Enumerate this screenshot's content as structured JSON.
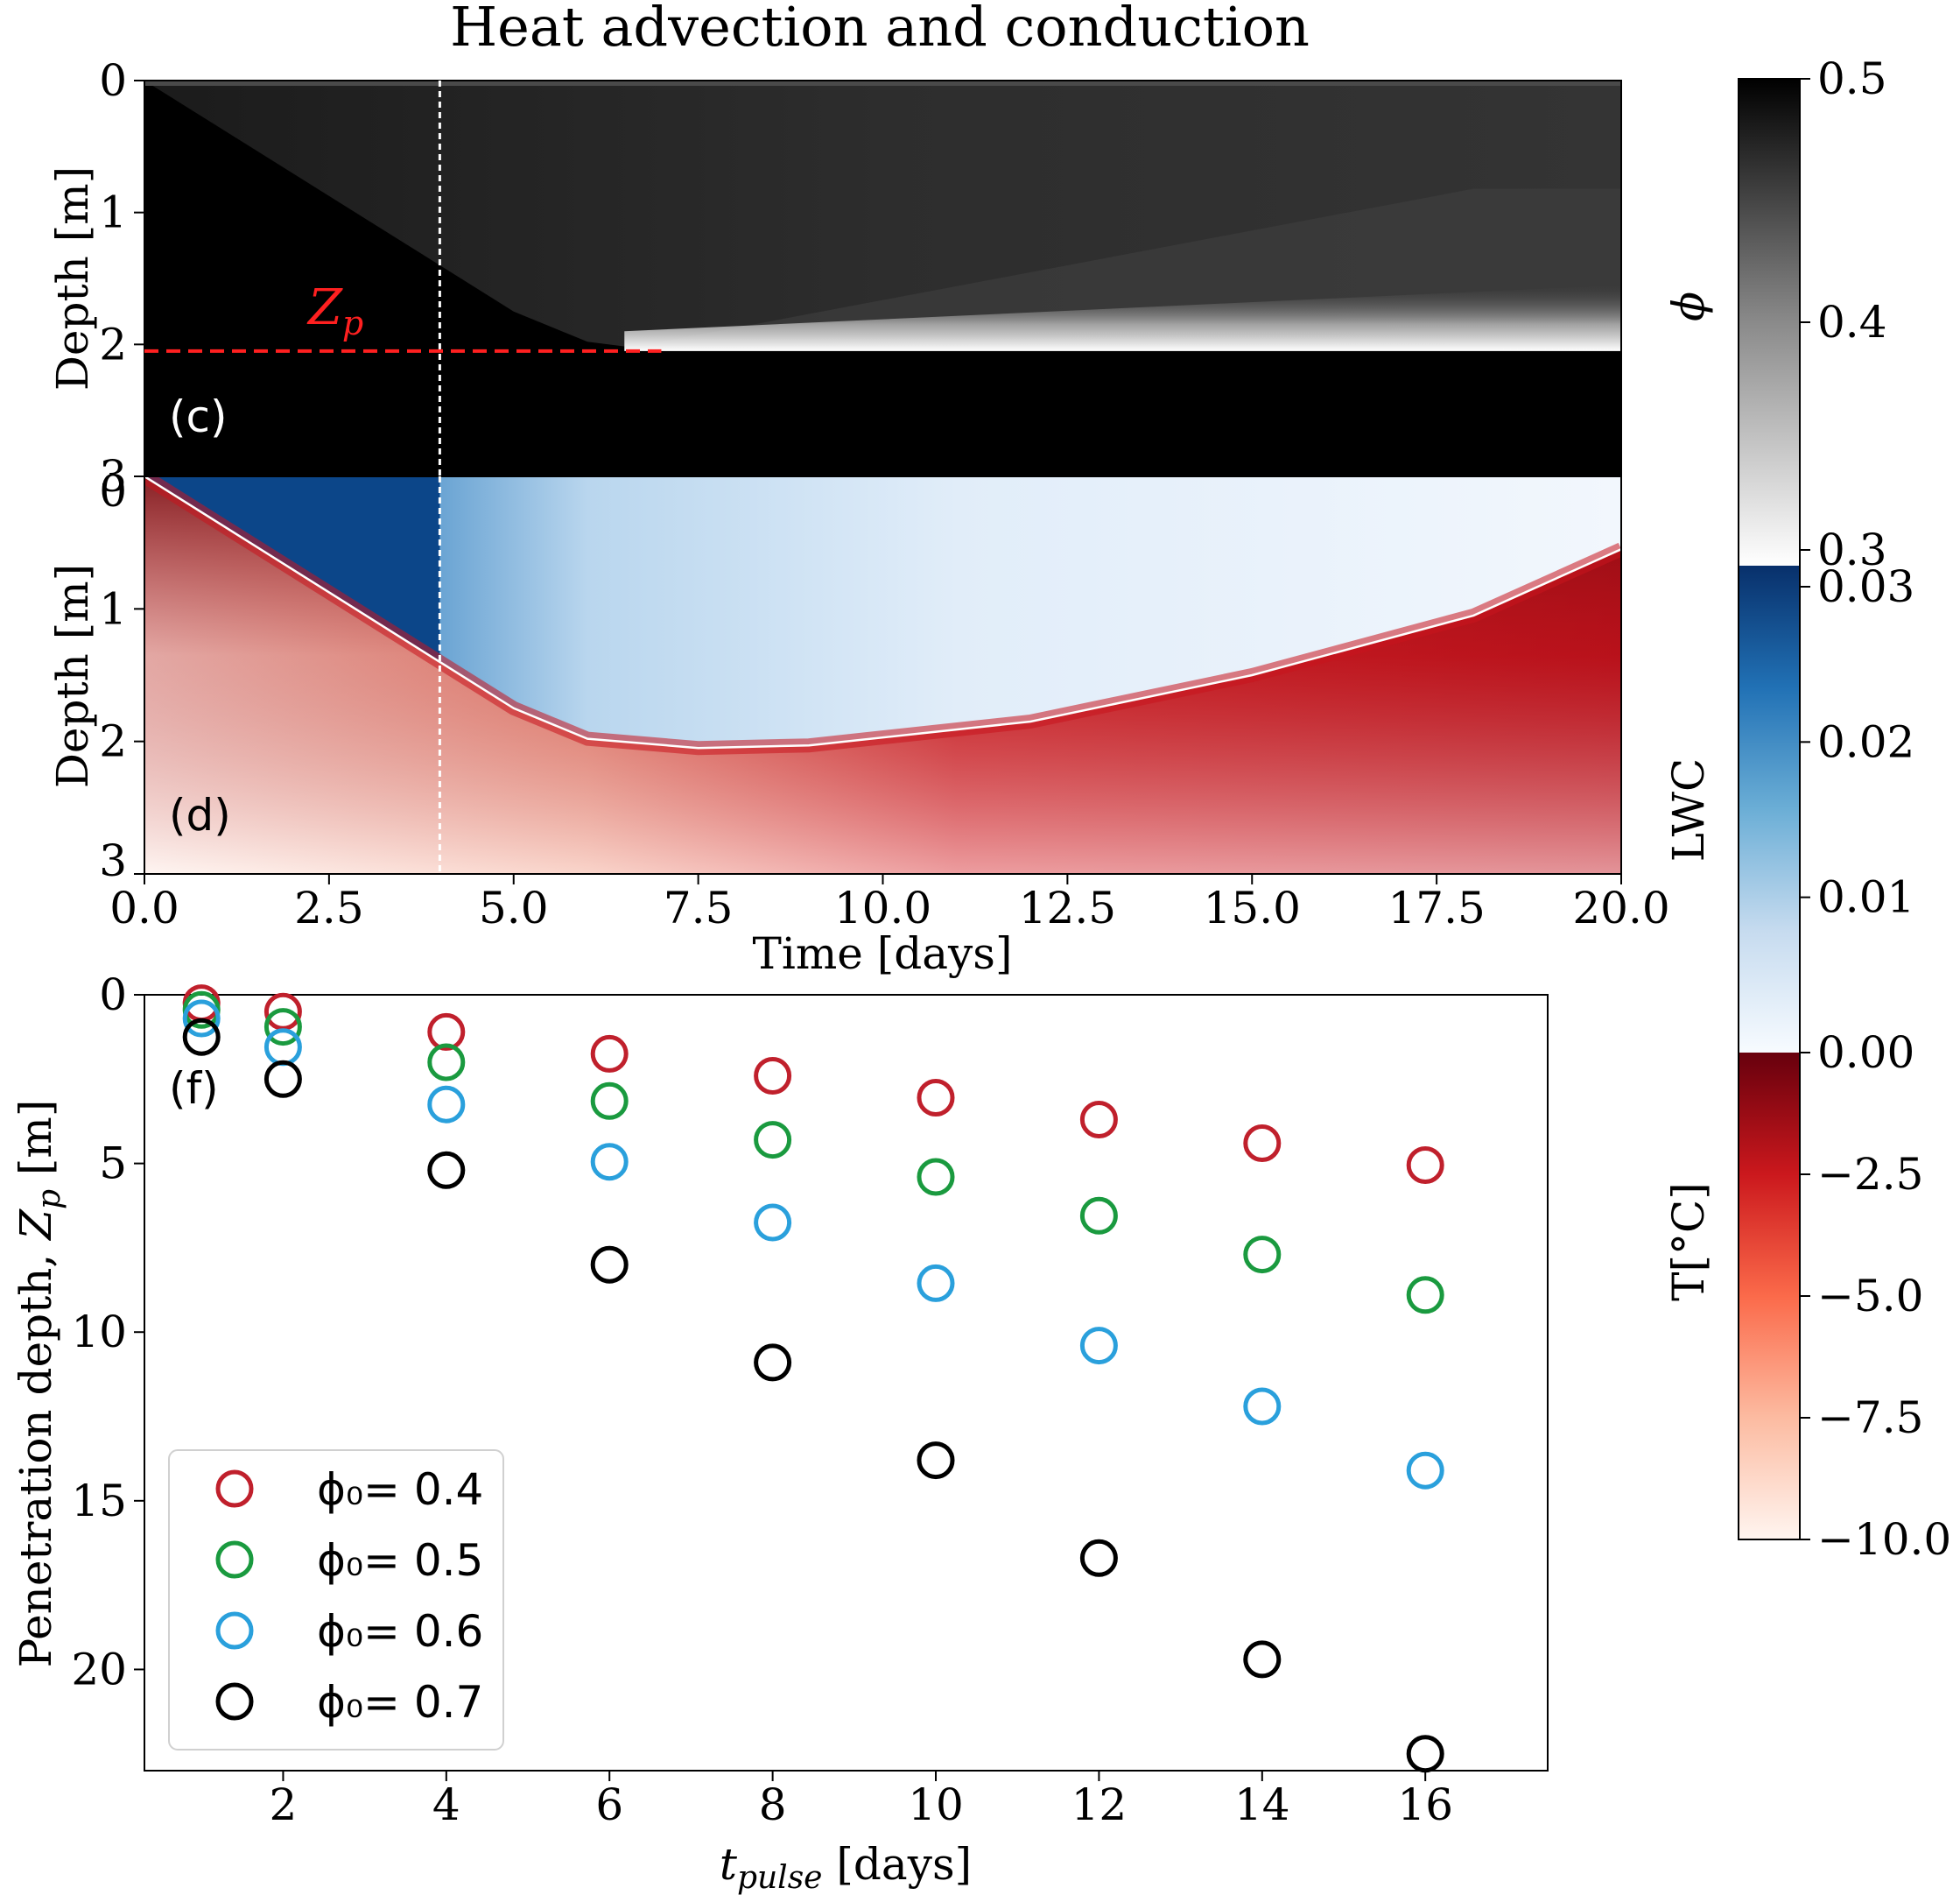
{
  "colors": {
    "red": "#c0202c",
    "green": "#1a9a3f",
    "blue": "#2aa0dc",
    "black": "#000000",
    "zp_marker": "#ff2020",
    "pulse_marker": "#ffffff"
  },
  "chart_data": [
    {
      "type": "heatmap",
      "panel_label": "(c)",
      "title": "Heat advection and conduction",
      "ylabel": "Depth [m]",
      "xlim": [
        0,
        20
      ],
      "ylim": [
        3,
        0
      ],
      "yticks": [
        "0",
        "1",
        "2",
        "3"
      ],
      "field": "porosity phi",
      "colorbar_label": "ϕ",
      "colorbar_range": [
        0.3,
        0.5
      ],
      "colorbar_ticks": [
        "0.5",
        "0.4",
        "0.3"
      ],
      "front_depth": [
        [
          0,
          0
        ],
        [
          4,
          1.4
        ],
        [
          5,
          1.75
        ],
        [
          6,
          1.98
        ],
        [
          7,
          2.05
        ],
        [
          20,
          2.05
        ]
      ],
      "upper_layer_phi": 0.45,
      "lower_layer_phi": 0.5,
      "zp_label": "Z",
      "zp_subscript": "p",
      "zp_depth": 2.05,
      "t_pulse": 4
    },
    {
      "type": "heatmap",
      "panel_label": "(d)",
      "ylabel": "Depth [m]",
      "xlabel": "Time [days]",
      "xlim": [
        0,
        20
      ],
      "ylim": [
        3,
        0
      ],
      "xticks": [
        "0.0",
        "2.5",
        "5.0",
        "7.5",
        "10.0",
        "12.5",
        "15.0",
        "17.5",
        "20.0"
      ],
      "yticks": [
        "0",
        "1",
        "2",
        "3"
      ],
      "fields": [
        "LWC",
        "T"
      ],
      "wet_front_depth": [
        [
          0,
          0
        ],
        [
          4,
          1.4
        ],
        [
          5,
          1.75
        ],
        [
          6,
          1.98
        ],
        [
          7.5,
          2.05
        ],
        [
          9,
          2.03
        ],
        [
          12,
          1.85
        ],
        [
          15,
          1.5
        ],
        [
          18,
          1.05
        ],
        [
          20,
          0.55
        ]
      ],
      "lwc_colorbar_label": "LWC",
      "lwc_range": [
        0,
        0.03
      ],
      "lwc_ticks": [
        "0.03",
        "0.02",
        "0.01",
        "0.00"
      ],
      "t_colorbar_label": "T[°C]",
      "t_range": [
        -10,
        0
      ],
      "t_ticks": [
        "−2.5",
        "−5.0",
        "−7.5",
        "−10.0"
      ],
      "t_pulse": 4
    },
    {
      "type": "scatter",
      "panel_label": "(f)",
      "xlabel_main": "t",
      "xlabel_sub": "pulse",
      "xlabel_unit": " [days]",
      "ylabel_main": "Penetration depth, ",
      "ylabel_sym": "Z",
      "ylabel_sub": "p",
      "ylabel_unit": " [m]",
      "xlim": [
        0.3,
        17.5
      ],
      "ylim": [
        23,
        0
      ],
      "xticks": [
        "2",
        "4",
        "6",
        "8",
        "10",
        "12",
        "14",
        "16"
      ],
      "yticks": [
        "0",
        "5",
        "10",
        "15",
        "20"
      ],
      "x": [
        1,
        2,
        4,
        6,
        8,
        10,
        12,
        14,
        16
      ],
      "series": [
        {
          "name": "ϕ₀= 0.4",
          "color": "#c0202c",
          "values": [
            0.25,
            0.5,
            1.1,
            1.75,
            2.4,
            3.05,
            3.7,
            4.4,
            5.05
          ]
        },
        {
          "name": "ϕ₀= 0.5",
          "color": "#1a9a3f",
          "values": [
            0.45,
            0.95,
            2.0,
            3.15,
            4.3,
            5.4,
            6.55,
            7.7,
            8.9
          ]
        },
        {
          "name": "ϕ₀= 0.6",
          "color": "#2aa0dc",
          "values": [
            0.7,
            1.55,
            3.25,
            4.95,
            6.75,
            8.55,
            10.4,
            12.2,
            14.1
          ]
        },
        {
          "name": "ϕ₀= 0.7",
          "color": "#000000",
          "values": [
            1.25,
            2.5,
            5.2,
            8.0,
            10.9,
            13.8,
            16.7,
            19.7,
            22.5
          ]
        }
      ],
      "legend_position": "lower-left"
    }
  ]
}
